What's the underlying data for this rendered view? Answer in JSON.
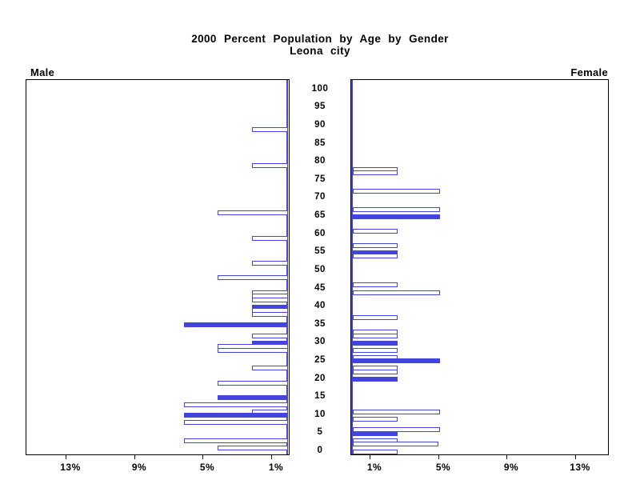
{
  "header": {
    "title": "2000 Percent Population by Age by Gender",
    "subtitle": "Leona city"
  },
  "chart_data": {
    "type": "bar",
    "variant": "population-pyramid",
    "title": "2000 Percent Population by Age by Gender",
    "subtitle": "Leona city",
    "left_panel_label": "Male",
    "right_panel_label": "Female",
    "orientation": "horizontal-bars-mirrored",
    "grid": false,
    "legend": "none",
    "colors": {
      "bar_outline": "#4343dd",
      "bar_fill": "#4343dd",
      "axis": "#000000",
      "text": "#000000",
      "background": "#ffffff"
    },
    "age_axis": {
      "label_position": "center-between-panels",
      "min": 0,
      "max": 100,
      "step": 5,
      "tick_labels": [
        "0",
        "5",
        "10",
        "15",
        "20",
        "25",
        "30",
        "35",
        "40",
        "45",
        "50",
        "55",
        "60",
        "65",
        "70",
        "75",
        "80",
        "85",
        "90",
        "95",
        "100"
      ]
    },
    "percent_axis": {
      "unit": "%",
      "range": [
        0,
        15
      ],
      "tick_values": [
        1,
        5,
        9,
        13
      ],
      "male_tick_labels": [
        "13%",
        "9%",
        "5%",
        "1%"
      ],
      "female_tick_labels": [
        "1%",
        "5%",
        "9%",
        "13%"
      ]
    },
    "fill_rule": "bars at ages that are multiples of 5 are solid, others hollow",
    "series": [
      {
        "name": "Male",
        "side": "left",
        "bars": [
          {
            "age": 89,
            "pct": 2.1,
            "filled": false
          },
          {
            "age": 79,
            "pct": 2.1,
            "filled": false
          },
          {
            "age": 66,
            "pct": 4.1,
            "filled": false
          },
          {
            "age": 59,
            "pct": 2.1,
            "filled": false
          },
          {
            "age": 52,
            "pct": 2.1,
            "filled": false
          },
          {
            "age": 48,
            "pct": 4.1,
            "filled": false
          },
          {
            "age": 44,
            "pct": 2.1,
            "filled": false
          },
          {
            "age": 43,
            "pct": 2.1,
            "filled": false
          },
          {
            "age": 42,
            "pct": 2.1,
            "filled": false
          },
          {
            "age": 40,
            "pct": 2.1,
            "filled": true
          },
          {
            "age": 39,
            "pct": 2.1,
            "filled": false
          },
          {
            "age": 38,
            "pct": 2.1,
            "filled": false
          },
          {
            "age": 35,
            "pct": 6.1,
            "filled": true
          },
          {
            "age": 32,
            "pct": 2.1,
            "filled": false
          },
          {
            "age": 30,
            "pct": 2.1,
            "filled": true
          },
          {
            "age": 29,
            "pct": 4.1,
            "filled": false
          },
          {
            "age": 28,
            "pct": 4.1,
            "filled": false
          },
          {
            "age": 23,
            "pct": 2.1,
            "filled": false
          },
          {
            "age": 19,
            "pct": 4.1,
            "filled": false
          },
          {
            "age": 15,
            "pct": 4.1,
            "filled": true
          },
          {
            "age": 13,
            "pct": 6.1,
            "filled": false
          },
          {
            "age": 11,
            "pct": 2.1,
            "filled": false
          },
          {
            "age": 10,
            "pct": 6.1,
            "filled": true
          },
          {
            "age": 8,
            "pct": 6.1,
            "filled": false
          },
          {
            "age": 3,
            "pct": 6.1,
            "filled": false
          },
          {
            "age": 1,
            "pct": 4.1,
            "filled": false
          }
        ]
      },
      {
        "name": "Female",
        "side": "right",
        "bars": [
          {
            "age": 78,
            "pct": 2.6,
            "filled": false
          },
          {
            "age": 77,
            "pct": 2.6,
            "filled": false
          },
          {
            "age": 72,
            "pct": 5.1,
            "filled": false
          },
          {
            "age": 67,
            "pct": 5.1,
            "filled": false
          },
          {
            "age": 65,
            "pct": 5.1,
            "filled": true
          },
          {
            "age": 61,
            "pct": 2.6,
            "filled": false
          },
          {
            "age": 57,
            "pct": 2.6,
            "filled": false
          },
          {
            "age": 55,
            "pct": 2.6,
            "filled": true
          },
          {
            "age": 54,
            "pct": 2.6,
            "filled": false
          },
          {
            "age": 46,
            "pct": 2.6,
            "filled": false
          },
          {
            "age": 44,
            "pct": 5.1,
            "filled": false
          },
          {
            "age": 37,
            "pct": 2.6,
            "filled": false
          },
          {
            "age": 33,
            "pct": 2.6,
            "filled": false
          },
          {
            "age": 32,
            "pct": 2.6,
            "filled": false
          },
          {
            "age": 30,
            "pct": 2.6,
            "filled": true
          },
          {
            "age": 28,
            "pct": 2.6,
            "filled": false
          },
          {
            "age": 26,
            "pct": 2.6,
            "filled": false
          },
          {
            "age": 25,
            "pct": 5.1,
            "filled": true
          },
          {
            "age": 23,
            "pct": 2.6,
            "filled": false
          },
          {
            "age": 22,
            "pct": 2.6,
            "filled": false
          },
          {
            "age": 20,
            "pct": 2.6,
            "filled": true
          },
          {
            "age": 11,
            "pct": 5.1,
            "filled": false
          },
          {
            "age": 9,
            "pct": 2.6,
            "filled": false
          },
          {
            "age": 6,
            "pct": 5.1,
            "filled": false
          },
          {
            "age": 5,
            "pct": 2.6,
            "filled": true
          },
          {
            "age": 3,
            "pct": 2.6,
            "filled": false
          },
          {
            "age": 2,
            "pct": 5.0,
            "filled": false
          },
          {
            "age": 0,
            "pct": 2.6,
            "filled": false
          }
        ]
      }
    ]
  }
}
